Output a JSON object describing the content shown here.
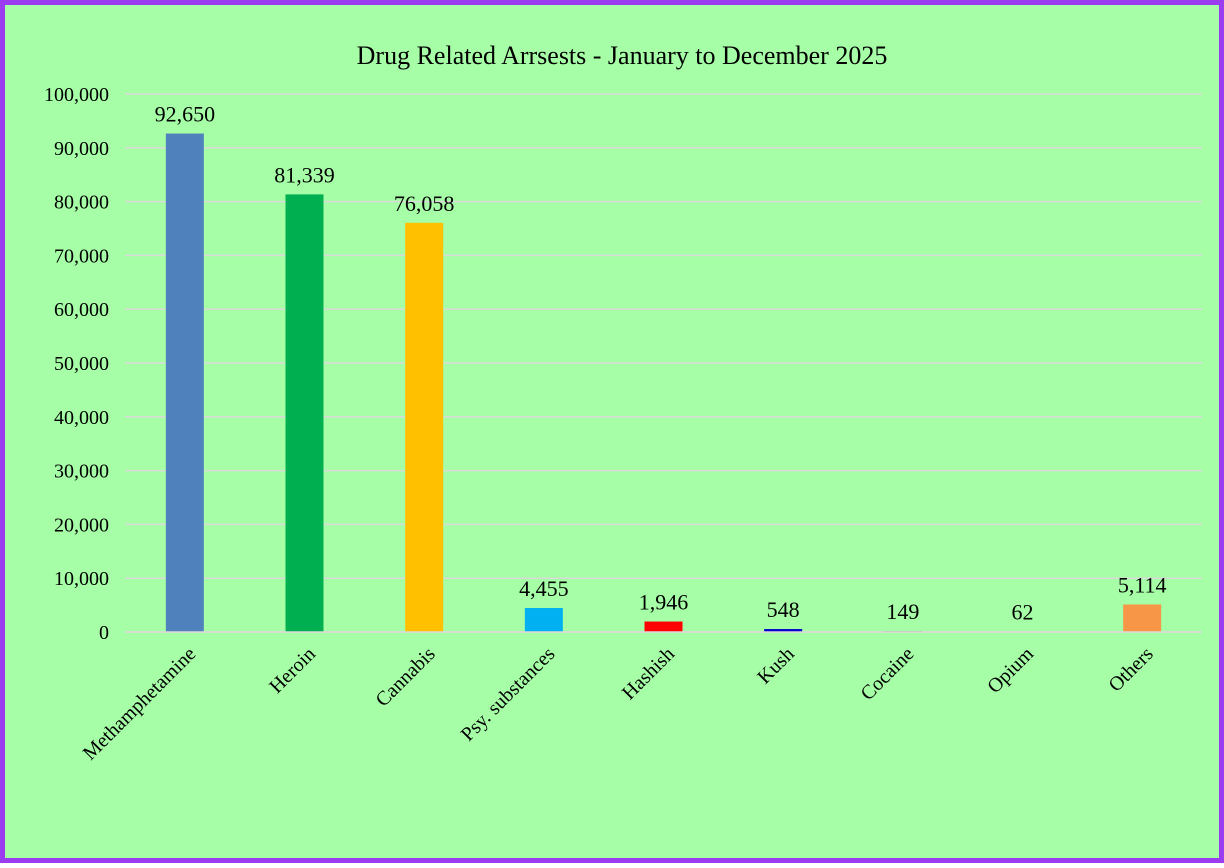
{
  "chart_data": {
    "type": "bar",
    "title": "Drug Related Arrsests - January to December 2025",
    "categories": [
      "Methamphetamine",
      "Heroin",
      "Cannabis",
      "Psy. substances",
      "Hashish",
      "Kush",
      "Cocaine",
      "Opium",
      "Others"
    ],
    "values": [
      92650,
      81339,
      76058,
      4455,
      1946,
      548,
      149,
      62,
      5114
    ],
    "data_labels": [
      "92,650",
      "81,339",
      "76,058",
      "4,455",
      "1,946",
      "548",
      "149",
      "62",
      "5,114"
    ],
    "colors": [
      "#4F81BD",
      "#00B050",
      "#FFC000",
      "#00B0F0",
      "#FF0000",
      "#0000CC",
      "#7F7F7F",
      "#7F7F7F",
      "#F79646"
    ],
    "ylim": [
      0,
      100000
    ],
    "yticks": [
      0,
      10000,
      20000,
      30000,
      40000,
      50000,
      60000,
      70000,
      80000,
      90000,
      100000
    ],
    "ytick_labels": [
      "0",
      "10,000",
      "20,000",
      "30,000",
      "40,000",
      "50,000",
      "60,000",
      "70,000",
      "80,000",
      "90,000",
      "100,000"
    ],
    "grid": true,
    "legend": "none",
    "background_color": "#A6FFA6",
    "border_color": "#9B3CF0",
    "grid_color": "#D9D9D9"
  }
}
